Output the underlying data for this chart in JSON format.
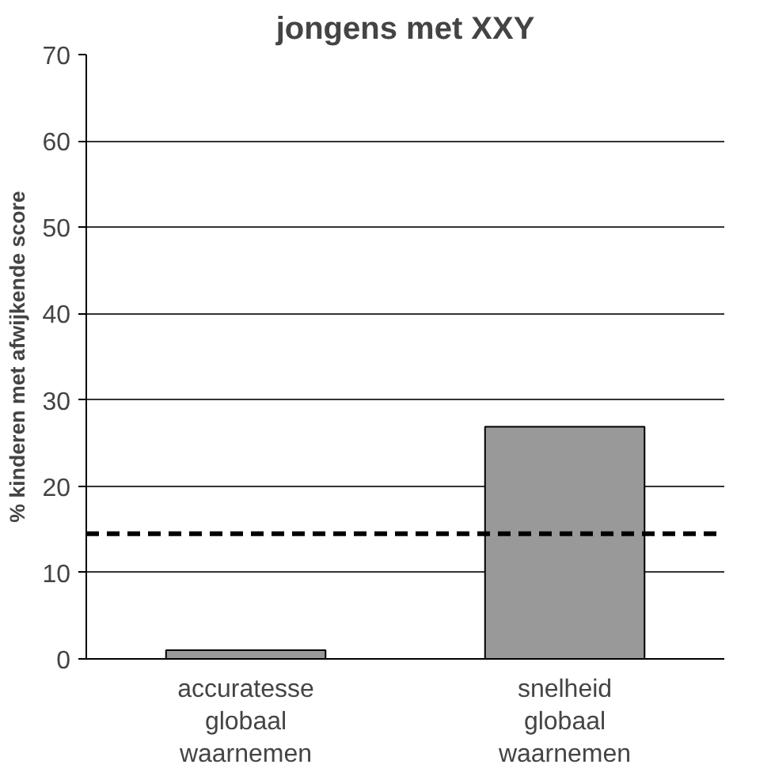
{
  "chart_data": {
    "type": "bar",
    "title": "jongens met XXY",
    "ylabel": "% kinderen met afwijkende score",
    "categories": [
      "accuratesse\nglobaal\nwaarnemen",
      "snelheid\nglobaal\nwaarnemen"
    ],
    "values": [
      1,
      26.9
    ],
    "color": "#999999",
    "ylim": [
      0,
      70
    ],
    "yticks": [
      0,
      10,
      20,
      30,
      40,
      50,
      60,
      70
    ],
    "grid": "y",
    "ref_lines": [
      {
        "axis": "y",
        "value": 14.5,
        "color": "#000000",
        "line_style": "dashed"
      }
    ]
  }
}
